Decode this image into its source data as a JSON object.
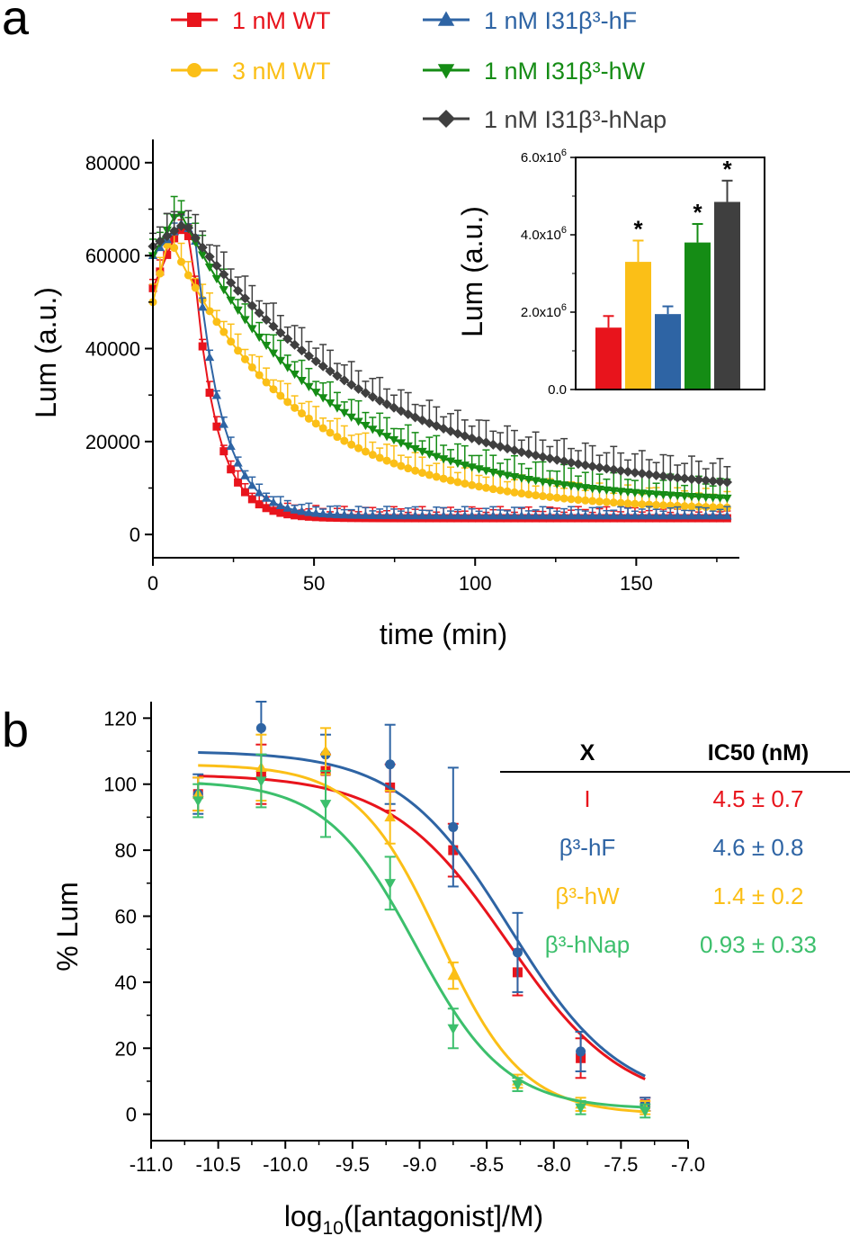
{
  "colors": {
    "red": "#e8141c",
    "yellow": "#fbbf17",
    "blue": "#2e64a4",
    "green": "#158c15",
    "dark": "#3f3f3f",
    "lightgreen": "#3cbf6c"
  },
  "panel_a": {
    "letter": "a",
    "legend": [
      {
        "label": "1 nM WT",
        "color": "red",
        "marker": "square"
      },
      {
        "label": "3 nM WT",
        "color": "yellow",
        "marker": "circle"
      },
      {
        "label": "1 nM I31β³-hF",
        "color": "blue",
        "marker": "triangle-up"
      },
      {
        "label": "1 nM I31β³-hW",
        "color": "green",
        "marker": "triangle-down"
      },
      {
        "label": "1 nM I31β³-hNap",
        "color": "dark",
        "marker": "diamond"
      }
    ]
  },
  "panel_b": {
    "letter": "b",
    "table": {
      "headers": [
        "X",
        "IC50 (nM)"
      ],
      "rows": [
        {
          "x": "I",
          "ic50": "4.5 ± 0.7",
          "color": "red"
        },
        {
          "x": "β³-hF",
          "ic50": "4.6 ± 0.8",
          "color": "blue"
        },
        {
          "x": "β³-hW",
          "ic50": "1.4 ± 0.2",
          "color": "yellow"
        },
        {
          "x": "β³-hNap",
          "ic50": "0.93 ± 0.33",
          "color": "lightgreen"
        }
      ]
    }
  },
  "chart_data": [
    {
      "type": "line",
      "panel": "a",
      "xlabel": "time (min)",
      "ylabel": "Lum (a.u.)",
      "xlim": [
        0,
        182
      ],
      "ylim": [
        -5000,
        85000
      ],
      "xticks": [
        0,
        50,
        100,
        150
      ],
      "xtick_labels": [
        "0",
        "50",
        "100",
        "150"
      ],
      "yticks": [
        0,
        20000,
        40000,
        60000,
        80000
      ],
      "ytick_labels": [
        "0",
        "20000",
        "40000",
        "60000",
        "80000"
      ],
      "model": "piecewise decay estimated from curve",
      "series": [
        {
          "name": "1 nM WT",
          "color": "red",
          "marker": "square",
          "y0": 53000,
          "peak": 66000,
          "t_peak": 8,
          "plateau": 3500,
          "tau": 7,
          "err": 2500
        },
        {
          "name": "3 nM WT",
          "color": "yellow",
          "marker": "circle",
          "y0": 50000,
          "peak": 64000,
          "t_peak": 5,
          "plateau": 5000,
          "tau": 40,
          "err": 4000
        },
        {
          "name": "1 nM I31β³-hF",
          "color": "blue",
          "marker": "triangle-up",
          "y0": 60000,
          "peak": 67000,
          "t_peak": 9,
          "plateau": 4000,
          "tau": 8,
          "err": 2000
        },
        {
          "name": "1 nM I31β³-hW",
          "color": "green",
          "marker": "triangle-down",
          "y0": 60000,
          "peak": 70000,
          "t_peak": 8,
          "plateau": 6500,
          "tau": 44,
          "err": 4500
        },
        {
          "name": "1 nM I31β³-hNap",
          "color": "dark",
          "marker": "diamond",
          "y0": 62000,
          "peak": 67000,
          "t_peak": 10,
          "plateau": 8000,
          "tau": 58,
          "err": 5000
        }
      ]
    },
    {
      "type": "bar",
      "panel": "a-inset",
      "ylabel": "Lum (a.u.)",
      "ylim": [
        0,
        6000000
      ],
      "yticks": [
        0,
        2000000,
        4000000,
        6000000
      ],
      "ytick_labels": [
        {
          "mant": "0.0",
          "exp": ""
        },
        {
          "mant": "2.0x10",
          "exp": "6"
        },
        {
          "mant": "4.0x10",
          "exp": "6"
        },
        {
          "mant": "6.0x10",
          "exp": "6"
        }
      ],
      "bars": [
        {
          "value": 1600000,
          "err": 300000,
          "color": "red",
          "star": ""
        },
        {
          "value": 3300000,
          "err": 550000,
          "color": "yellow",
          "star": "*"
        },
        {
          "value": 1950000,
          "err": 200000,
          "color": "blue",
          "star": ""
        },
        {
          "value": 3800000,
          "err": 480000,
          "color": "green",
          "star": "*"
        },
        {
          "value": 4850000,
          "err": 550000,
          "color": "dark",
          "star": "*"
        }
      ]
    },
    {
      "type": "scatter",
      "panel": "b",
      "xlabel": {
        "pre": "log",
        "sub": "10",
        "post": "([antagonist]/M)"
      },
      "ylabel": "% Lum",
      "xlim": [
        -11.0,
        -7.0
      ],
      "ylim": [
        -8,
        125
      ],
      "xticks": [
        -11.0,
        -10.5,
        -10.0,
        -9.5,
        -9.0,
        -8.5,
        -8.0,
        -7.5,
        -7.0
      ],
      "xtick_labels": [
        "-11.0",
        "-10.5",
        "-10.0",
        "-9.5",
        "-9.0",
        "-8.5",
        "-8.0",
        "-7.5",
        "-7.0"
      ],
      "yticks": [
        0,
        20,
        40,
        60,
        80,
        100,
        120
      ],
      "ytick_labels": [
        "0",
        "20",
        "40",
        "60",
        "80",
        "100",
        "120"
      ],
      "x": [
        -10.65,
        -10.18,
        -9.7,
        -9.22,
        -8.75,
        -8.27,
        -7.8,
        -7.32
      ],
      "series": [
        {
          "name": "I",
          "color": "red",
          "marker": "square",
          "y": [
            97,
            103,
            104,
            99,
            80,
            43,
            17,
            3
          ],
          "err": [
            5,
            9,
            5,
            7,
            8,
            7,
            6,
            2
          ],
          "fit": {
            "top": 103,
            "bottom": 2,
            "logIC50": -8.35,
            "hill": 1.0
          }
        },
        {
          "name": "β³-hF",
          "color": "blue",
          "marker": "circle",
          "y": [
            97,
            117,
            109,
            106,
            87,
            49,
            19,
            3
          ],
          "err": [
            6,
            8,
            6,
            12,
            18,
            12,
            6,
            2
          ],
          "fit": {
            "top": 110,
            "bottom": 3,
            "logIC50": -8.33,
            "hill": 1.05
          }
        },
        {
          "name": "β³-hW",
          "color": "yellow",
          "marker": "triangle-up",
          "y": [
            97,
            105,
            110,
            90,
            42,
            10,
            3,
            2
          ],
          "err": [
            5,
            10,
            7,
            8,
            4,
            2,
            2,
            2
          ],
          "fit": {
            "top": 106,
            "bottom": 0,
            "logIC50": -8.85,
            "hill": 1.4
          }
        },
        {
          "name": "β³-hNap",
          "color": "lightgreen",
          "marker": "triangle-down",
          "y": [
            95,
            101,
            94,
            70,
            26,
            9,
            2,
            1
          ],
          "err": [
            5,
            8,
            10,
            8,
            6,
            2,
            2,
            2
          ],
          "fit": {
            "top": 101,
            "bottom": 1.5,
            "logIC50": -9.03,
            "hill": 1.3
          }
        }
      ]
    }
  ]
}
